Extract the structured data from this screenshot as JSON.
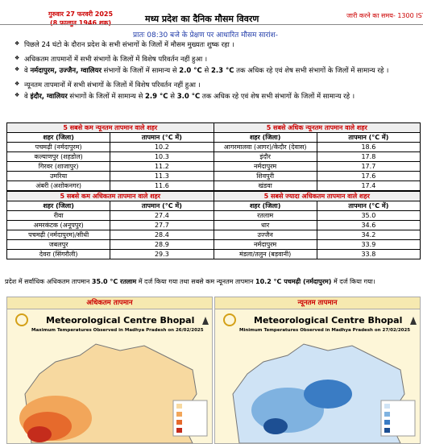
{
  "header": {
    "date": "गुरुवार 27 फरवरी 2025",
    "saka": "(8 फाल्गुन 1946 शक)",
    "title": "मध्य प्रदेश का दैनिक मौसम विवरण",
    "issue_time": "जारी करने का समय- 1300 IST"
  },
  "subtitle": "प्रातः 08:30 बजे के प्रेक्षण पर आधारित मौसम सारांश-",
  "bullets": [
    [
      "पिछले 24 घंटो के दौरान प्रदेश के सभी संभागों के जिलों में मौसम मुख्यतः शुष्क रहा ।"
    ],
    [
      "अधिकतम तापमानों में सभी संभागों के जिलों में विशेष परिवर्तन नहीं हुआ ।"
    ],
    [
      "वे ",
      "नर्मदापुरम, उज्जैन, ग्वालियर",
      " संभागों के जिलों में सामान्य से ",
      "2.0 °C",
      " से ",
      "2.3 °C",
      " तक अधिक रहे एवं शेष सभी संभागों के जिलों में सामान्य रहे ।"
    ],
    [
      "न्यूनतम तापमानों में सभी संभागों के जिलों में विशेष परिवर्तन नहीं हुआ ।"
    ],
    [
      "वे ",
      "इंदौर, ग्वालियर",
      " संभागों के जिलों में सामान्य से ",
      "2.9 °C",
      " से ",
      "3.0 °C",
      " तक अधिक रहे एवं शेष सभी संभागों के जिलों में सामान्य रहे ।"
    ]
  ],
  "tables": [
    {
      "title": "5 सबसे कम न्यूनतम तापमान वाले शहर",
      "columns": [
        "शहर (जिला)",
        "तापमान (°C में)"
      ],
      "rows": [
        [
          "पचमढ़ी (नर्मदापुरम)",
          "10.2"
        ],
        [
          "कल्याणपुर (शहडोल)",
          "10.3"
        ],
        [
          "गिरवर (शाजापुर)",
          "11.2"
        ],
        [
          "उमरिया",
          "11.3"
        ],
        [
          "अंबरी (अशोकनगर)",
          "11.6"
        ]
      ]
    },
    {
      "title": "5 सबसे अधिक न्यूनतम तापमान वाले शहर",
      "columns": [
        "शहर (जिला)",
        "तापमान (°C में)"
      ],
      "rows": [
        [
          "आगरमालवा (आगर)/केदौर (देवास)",
          "18.6"
        ],
        [
          "इंदौर",
          "17.8"
        ],
        [
          "नर्मदापुरम",
          "17.7"
        ],
        [
          "शिवपुरी",
          "17.6"
        ],
        [
          "खंडवा",
          "17.4"
        ]
      ]
    },
    {
      "title": "5 सबसे कम अधिकतम तापमान वाले शहर",
      "columns": [
        "शहर (जिला)",
        "तापमान (°C में)"
      ],
      "rows": [
        [
          "रीवा",
          "27.4"
        ],
        [
          "अमरकंटक (अनूपपुर)",
          "27.7"
        ],
        [
          "पचमढ़ी (नर्मदापुरम)/सीधी",
          "28.4"
        ],
        [
          "जबलपुर",
          "28.9"
        ],
        [
          "देवरा (सिंगरौली)",
          "29.3"
        ]
      ]
    },
    {
      "title": "5 सबसे ज्यादा अधिकतम तापमान वाले शहर",
      "columns": [
        "शहर (जिला)",
        "तापमान (°C में)"
      ],
      "rows": [
        [
          "रतलाम",
          "35.0"
        ],
        [
          "धार",
          "34.6"
        ],
        [
          "उज्जैन",
          "34.2"
        ],
        [
          "नर्मदापुरम",
          "33.9"
        ],
        [
          "मंडला/तलुन (बड़वानी)",
          "33.8"
        ]
      ]
    }
  ],
  "summary": [
    "प्रदेश में सर्वाधिक अधिकतम तापमान ",
    "35.0 °C रतलाम",
    " में दर्ज किया गया तथा सबसे कम न्यूनतम तापमान ",
    "10.2 °C पचमढ़ी (नर्मदापुरम)",
    " में दर्ज किया गया।"
  ],
  "maps": [
    {
      "heading": "अधिकतम तापमान",
      "centre": "Meteorological Centre Bhopal",
      "caption": "Maximum Temperatures Observed in Madhya Pradesh on 26/02/2025"
    },
    {
      "heading": "न्यूनतम तापमान",
      "centre": "Meteorological Centre Bhopal",
      "caption": "Minimum Temperatures Observed in Madhya Pradesh on 27/02/2025"
    }
  ]
}
